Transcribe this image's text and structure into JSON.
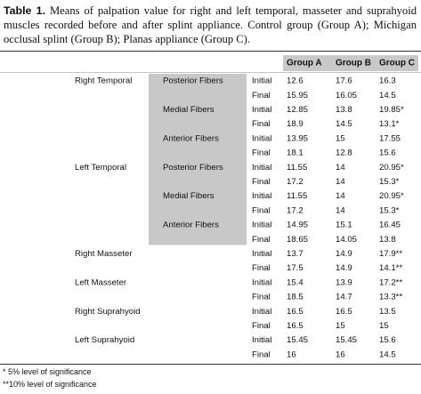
{
  "caption": {
    "label": "Table 1.",
    "text": "Means of palpation value for right and left temporal, masseter and suprahyoid muscles recorded before and after splint appliance. Control group (Group A); Michigan occlusal splint (Group B); Planas appliance (Group C)."
  },
  "table": {
    "header": [
      "Group A",
      "Group B",
      "Group C"
    ],
    "rows": [
      {
        "muscle": "Right Temporal",
        "fiber": "Posterior Fibers",
        "time": "Initial",
        "cells": [
          "12.6",
          "17.6",
          "16.3"
        ]
      },
      {
        "time": "Final",
        "cells": [
          "15.95",
          "16.05",
          "14.5"
        ]
      },
      {
        "fiber": "Medial Fibers",
        "time": "Initial",
        "cells": [
          "12.85",
          "13.8",
          "19.85*"
        ]
      },
      {
        "time": "Final",
        "cells": [
          "18.9",
          "14.5",
          "13.1*"
        ]
      },
      {
        "fiber": "Anterior Fibers",
        "time": "Initial",
        "cells": [
          "13.95",
          "15",
          "17.55"
        ]
      },
      {
        "time": "Final",
        "cells": [
          "18.1",
          "12.8",
          "15.6"
        ]
      },
      {
        "muscle": "Left Temporal",
        "fiber": "Posterior Fibers",
        "time": "Initial",
        "cells": [
          "11.55",
          "14",
          "20.95*"
        ]
      },
      {
        "time": "Final",
        "cells": [
          "17.2",
          "14",
          "15.3*"
        ]
      },
      {
        "fiber": "Medial Fibers",
        "time": "Initial",
        "cells": [
          "11.55",
          "14",
          "20.95*"
        ]
      },
      {
        "time": "Final",
        "cells": [
          "17.2",
          "14",
          "15.3*"
        ]
      },
      {
        "fiber": "Anterior Fibers",
        "time": "Initial",
        "cells": [
          "14.95",
          "15.1",
          "16.45"
        ]
      },
      {
        "time": "Final",
        "cells": [
          "18.65",
          "14.05",
          "13.8"
        ]
      },
      {
        "muscle": "Right Masseter",
        "time": "Initial",
        "cells": [
          "13.7",
          "14.9",
          "17.9**"
        ]
      },
      {
        "time": "Final",
        "cells": [
          "17.5",
          "14.9",
          "14.1**"
        ]
      },
      {
        "muscle": "Left Masseter",
        "time": "Initial",
        "cells": [
          "15.4",
          "13.9",
          "17.2**"
        ]
      },
      {
        "time": "Final",
        "cells": [
          "18.5",
          "14.7",
          "13.3**"
        ]
      },
      {
        "muscle": "Right Suprahyoid",
        "time": "Initial",
        "cells": [
          "16.5",
          "16.5",
          "13.5"
        ]
      },
      {
        "time": "Final",
        "cells": [
          "16.5",
          "15",
          "15"
        ]
      },
      {
        "muscle": "Left Suprahyoid",
        "time": "Initial",
        "cells": [
          "15.45",
          "15.45",
          "15.6"
        ]
      },
      {
        "time": "Final",
        "cells": [
          "16",
          "16",
          "14.5"
        ]
      }
    ]
  },
  "footnotes": [
    "* 5% level of significance",
    "**10% level of significance"
  ]
}
